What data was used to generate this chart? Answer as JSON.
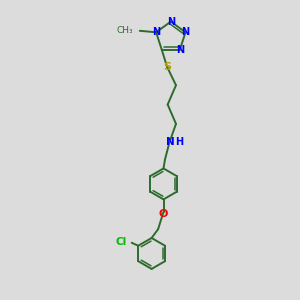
{
  "bg_color": "#dcdcdc",
  "bond_color": "#2d6b2d",
  "N_color": "#0000ff",
  "S_color": "#b8a000",
  "O_color": "#ff0000",
  "Cl_color": "#00bb00",
  "figsize": [
    3.0,
    3.0
  ],
  "dpi": 100,
  "xlim": [
    0,
    10
  ],
  "ylim": [
    0,
    10
  ]
}
